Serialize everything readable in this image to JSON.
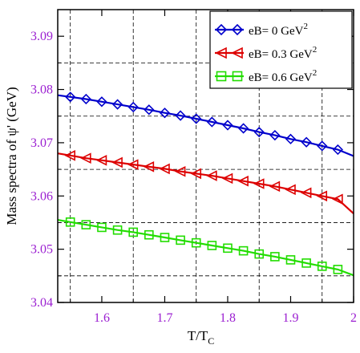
{
  "chart_data": {
    "type": "line",
    "xlabel": "T/T",
    "xlabel_sub": "C",
    "ylabel": "Mass spectra of ψ' (GeV)",
    "xlim": [
      1.53,
      2.0
    ],
    "ylim": [
      3.04,
      3.095
    ],
    "x_ticks": [
      1.6,
      1.7,
      1.8,
      1.9,
      2.0
    ],
    "x_tick_labels": [
      "1.6",
      "1.7",
      "1.8",
      "1.9",
      "2"
    ],
    "y_ticks": [
      3.04,
      3.05,
      3.06,
      3.07,
      3.08,
      3.09
    ],
    "y_tick_labels": [
      "3.04",
      "3.05",
      "3.06",
      "3.07",
      "3.08",
      "3.09"
    ],
    "grid": true,
    "grid_style": "dashed",
    "grid_x": [
      1.55,
      1.65,
      1.75,
      1.85,
      1.95
    ],
    "grid_y": [
      3.045,
      3.055,
      3.065,
      3.075,
      3.085
    ],
    "legend_position": "top-right",
    "x": [
      1.55,
      1.575,
      1.6,
      1.625,
      1.65,
      1.675,
      1.7,
      1.725,
      1.75,
      1.775,
      1.8,
      1.825,
      1.85,
      1.875,
      1.9,
      1.925,
      1.95,
      1.975
    ],
    "series": [
      {
        "legend": "eB= 0 GeV",
        "sup": "2",
        "color": "#0000cc",
        "marker": "diamond",
        "values": [
          3.0786,
          3.0782,
          3.0777,
          3.0772,
          3.0767,
          3.0762,
          3.0756,
          3.0751,
          3.0745,
          3.0739,
          3.0733,
          3.0727,
          3.072,
          3.0714,
          3.0707,
          3.0701,
          3.0694,
          3.0687
        ],
        "line_end": 3.0675
      },
      {
        "legend": "eB= 0.3 GeV",
        "sup": "2",
        "color": "#dd0000",
        "marker": "triangle-left",
        "values": [
          3.0676,
          3.0671,
          3.0667,
          3.0663,
          3.0659,
          3.0655,
          3.0651,
          3.0646,
          3.0642,
          3.0638,
          3.0633,
          3.0628,
          3.0623,
          3.0618,
          3.0612,
          3.0606,
          3.06,
          3.0594
        ],
        "line_end": 3.0567
      },
      {
        "legend": "eB= 0.6 GeV",
        "sup": "2",
        "color": "#22dd00",
        "marker": "square",
        "values": [
          3.0551,
          3.0546,
          3.0541,
          3.0536,
          3.0532,
          3.0527,
          3.0522,
          3.0517,
          3.0512,
          3.0507,
          3.0502,
          3.0497,
          3.0491,
          3.0486,
          3.048,
          3.0474,
          3.0468,
          3.0462
        ],
        "line_end": 3.0451
      }
    ]
  }
}
